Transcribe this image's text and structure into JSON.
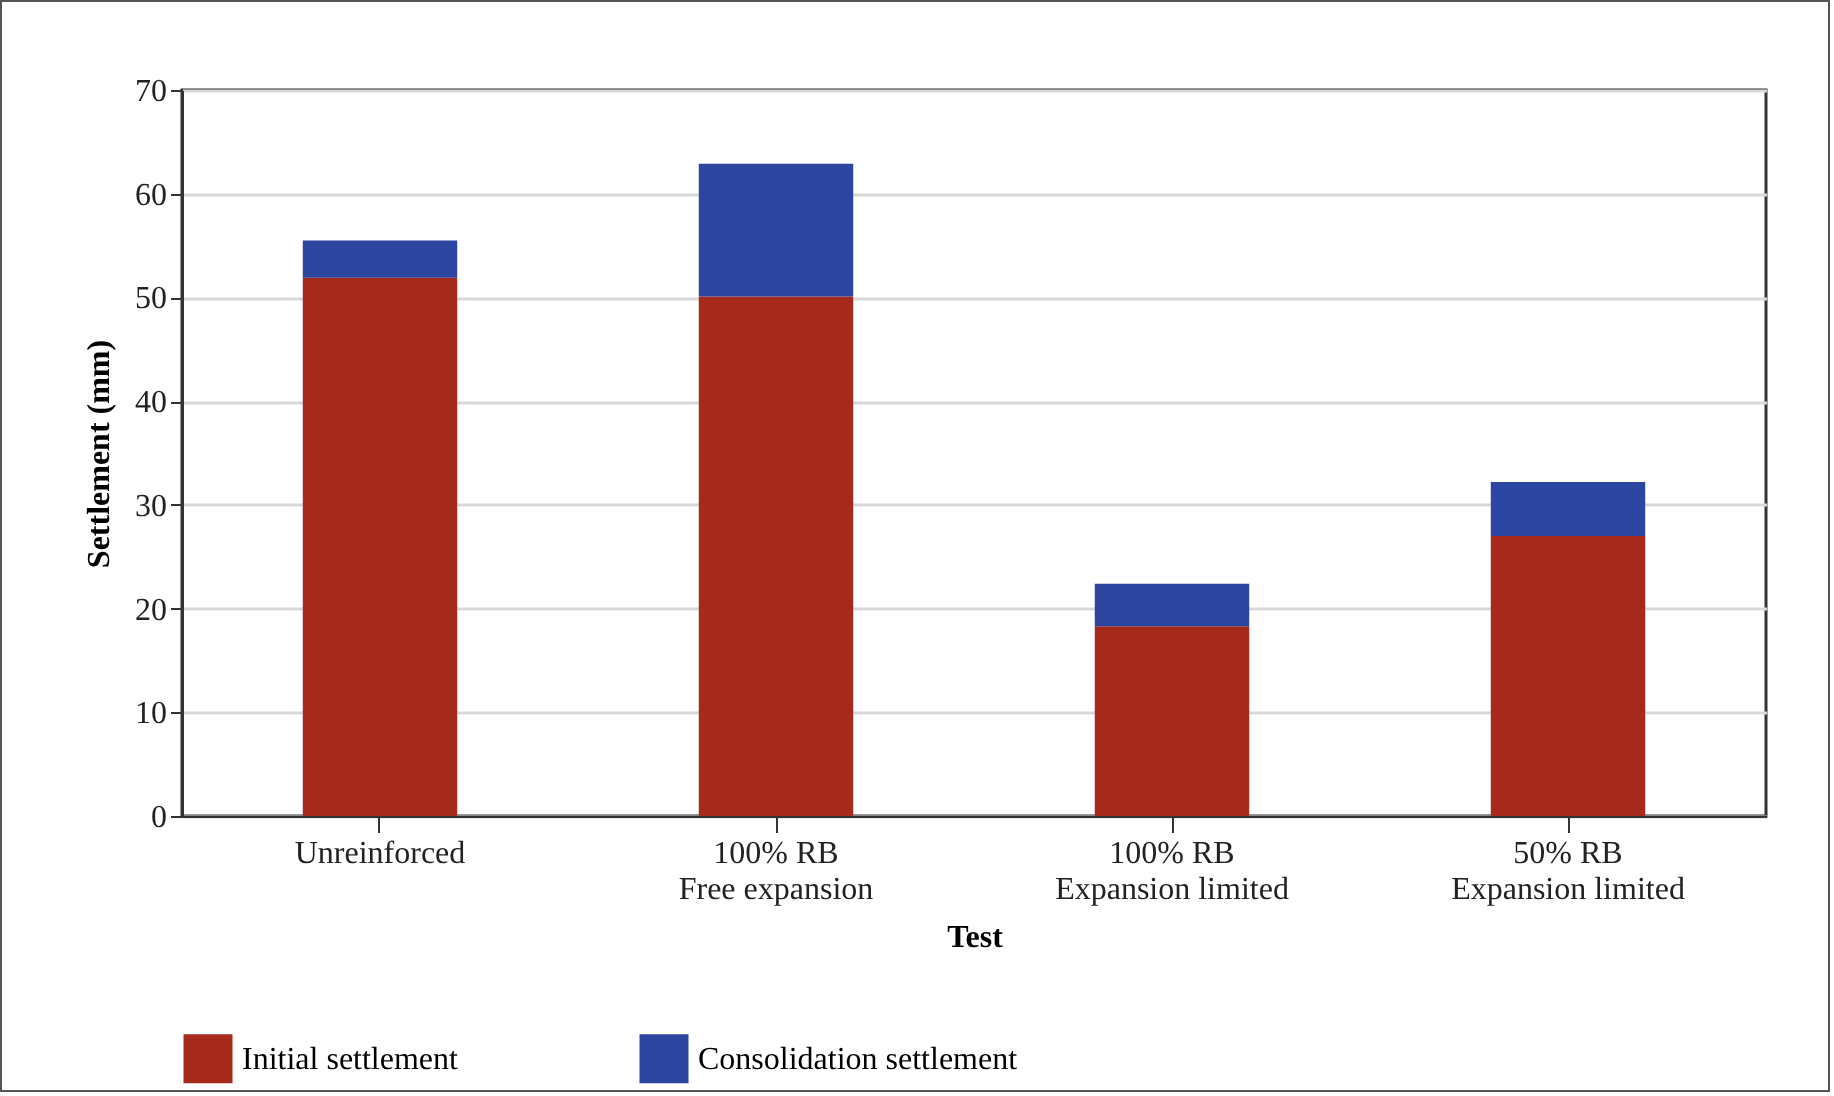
{
  "chart_data": {
    "type": "bar",
    "stacked": true,
    "xlabel": "Test",
    "ylabel": "Settlement (mm)",
    "categories": [
      "Unreinforced",
      "100% RB\nFree expansion",
      "100% RB\nExpansion limited",
      "50% RB\nExpansion limited"
    ],
    "series": [
      {
        "name": "Initial settlement",
        "color": "#a62a1c",
        "values": [
          51.9,
          50.1,
          18.3,
          27.0
        ]
      },
      {
        "name": "Consolidation settlement",
        "color": "#2b45a0",
        "values": [
          3.6,
          12.8,
          4.1,
          5.2
        ]
      }
    ],
    "ylim": [
      0,
      70
    ],
    "yticks": [
      0,
      10,
      20,
      30,
      40,
      50,
      60,
      70
    ],
    "grid": "y",
    "legend": "bottom"
  }
}
